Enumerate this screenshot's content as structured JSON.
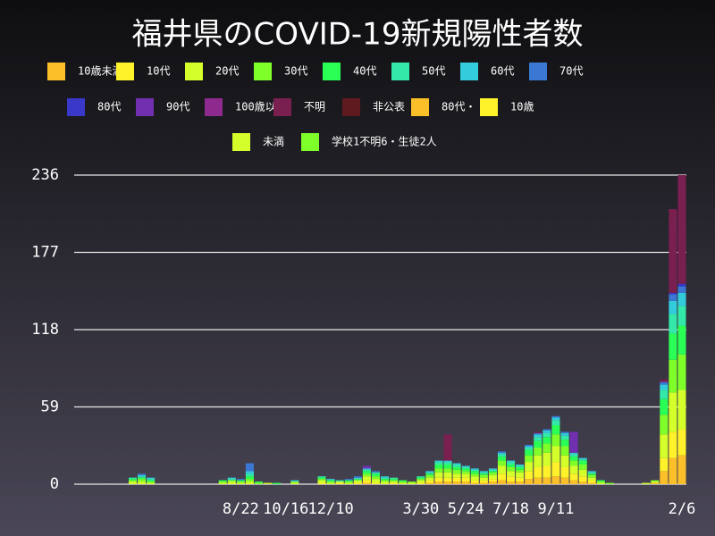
{
  "chart_data": {
    "type": "bar",
    "stacked": true,
    "title": "福井県のCOVID-19新規陽性者数",
    "categories": [
      null,
      null,
      null,
      null,
      null,
      null,
      null,
      null,
      null,
      null,
      null,
      null,
      null,
      null,
      null,
      null,
      null,
      null,
      "8/22",
      null,
      null,
      null,
      null,
      "10/16",
      null,
      null,
      null,
      null,
      "12/10",
      null,
      null,
      null,
      null,
      null,
      null,
      null,
      null,
      null,
      "3/30",
      null,
      null,
      null,
      null,
      "5/24",
      null,
      null,
      null,
      null,
      "7/18",
      null,
      null,
      null,
      null,
      "9/11",
      null,
      null,
      null,
      null,
      null,
      null,
      null,
      null,
      null,
      null,
      null,
      null,
      null,
      "2/6"
    ],
    "ylim": [
      0,
      236
    ],
    "yticks": [
      0,
      59,
      118,
      177,
      236
    ],
    "grid": true,
    "series": [
      {
        "name": "10歳未満",
        "color": "#fbbf2a",
        "values": [
          0,
          0,
          0,
          0,
          0,
          0,
          0,
          0,
          0,
          0,
          0,
          0,
          0,
          0,
          0,
          0,
          0,
          0,
          0,
          0,
          0,
          0,
          0,
          0,
          0,
          0,
          0,
          0,
          0,
          0,
          0,
          0,
          1,
          0,
          0,
          0,
          0,
          0,
          0,
          1,
          2,
          2,
          2,
          2,
          1,
          1,
          2,
          3,
          2,
          2,
          4,
          5,
          5,
          6,
          5,
          3,
          2,
          1,
          0,
          0,
          0,
          0,
          0,
          0,
          1,
          10,
          20,
          22
        ]
      },
      {
        "name": "10代",
        "color": "#fff22a",
        "values": [
          0,
          0,
          0,
          0,
          0,
          0,
          0,
          0,
          0,
          0,
          0,
          0,
          0,
          0,
          0,
          0,
          0,
          0,
          0,
          0,
          0,
          0,
          0,
          0,
          0,
          0,
          0,
          1,
          0,
          1,
          0,
          1,
          2,
          1,
          0,
          1,
          0,
          0,
          1,
          2,
          3,
          3,
          3,
          3,
          2,
          2,
          2,
          5,
          4,
          3,
          6,
          8,
          9,
          11,
          8,
          5,
          4,
          2,
          0,
          0,
          0,
          0,
          0,
          0,
          0,
          10,
          20,
          20
        ]
      },
      {
        "name": "20代",
        "color": "#d4ff2a",
        "values": [
          0,
          0,
          0,
          0,
          0,
          0,
          2,
          2,
          1,
          0,
          0,
          0,
          0,
          0,
          0,
          0,
          1,
          2,
          1,
          2,
          0,
          1,
          0,
          0,
          1,
          0,
          0,
          2,
          1,
          1,
          1,
          2,
          3,
          3,
          2,
          1,
          1,
          1,
          2,
          2,
          4,
          4,
          3,
          3,
          3,
          2,
          3,
          6,
          4,
          4,
          7,
          9,
          10,
          12,
          9,
          6,
          5,
          2,
          1,
          0,
          0,
          0,
          0,
          1,
          1,
          18,
          30,
          30
        ]
      },
      {
        "name": "30代",
        "color": "#7fff2a",
        "values": [
          0,
          0,
          0,
          0,
          0,
          0,
          1,
          2,
          1,
          0,
          0,
          0,
          0,
          0,
          0,
          0,
          1,
          1,
          1,
          2,
          1,
          0,
          0,
          0,
          1,
          0,
          0,
          1,
          1,
          0,
          1,
          0,
          2,
          2,
          1,
          1,
          1,
          1,
          1,
          2,
          3,
          3,
          3,
          2,
          2,
          2,
          2,
          4,
          3,
          2,
          5,
          6,
          7,
          9,
          7,
          4,
          4,
          2,
          1,
          1,
          0,
          0,
          0,
          0,
          1,
          15,
          25,
          27
        ]
      },
      {
        "name": "40代",
        "color": "#2aff55",
        "values": [
          0,
          0,
          0,
          0,
          0,
          0,
          1,
          1,
          1,
          0,
          0,
          0,
          0,
          0,
          0,
          0,
          1,
          0,
          1,
          2,
          1,
          0,
          1,
          0,
          0,
          0,
          0,
          1,
          1,
          0,
          1,
          1,
          2,
          2,
          1,
          1,
          1,
          0,
          1,
          1,
          3,
          3,
          2,
          2,
          2,
          1,
          1,
          3,
          2,
          2,
          4,
          5,
          5,
          7,
          5,
          3,
          3,
          1,
          1,
          0,
          0,
          0,
          0,
          0,
          0,
          12,
          20,
          22
        ]
      },
      {
        "name": "50代",
        "color": "#33e8a8",
        "values": [
          0,
          0,
          0,
          0,
          0,
          0,
          1,
          1,
          1,
          0,
          0,
          0,
          0,
          0,
          0,
          0,
          0,
          1,
          0,
          2,
          0,
          0,
          0,
          0,
          0,
          0,
          0,
          1,
          0,
          1,
          0,
          0,
          1,
          1,
          1,
          1,
          0,
          0,
          1,
          1,
          2,
          2,
          2,
          1,
          1,
          1,
          1,
          2,
          2,
          1,
          2,
          3,
          3,
          4,
          3,
          2,
          1,
          1,
          0,
          0,
          0,
          0,
          0,
          0,
          0,
          7,
          15,
          15
        ]
      },
      {
        "name": "60代",
        "color": "#33ccdd",
        "values": [
          0,
          0,
          0,
          0,
          0,
          0,
          0,
          1,
          1,
          0,
          0,
          0,
          0,
          0,
          0,
          0,
          0,
          1,
          0,
          2,
          0,
          0,
          0,
          0,
          1,
          0,
          0,
          0,
          1,
          0,
          0,
          1,
          1,
          0,
          1,
          0,
          0,
          0,
          0,
          1,
          1,
          1,
          1,
          1,
          1,
          1,
          1,
          1,
          1,
          1,
          1,
          2,
          2,
          2,
          2,
          1,
          1,
          1,
          0,
          0,
          0,
          0,
          0,
          0,
          0,
          4,
          10,
          10
        ]
      },
      {
        "name": "70代",
        "color": "#3a78d4",
        "values": [
          0,
          0,
          0,
          0,
          0,
          0,
          0,
          1,
          0,
          0,
          0,
          0,
          0,
          0,
          0,
          0,
          0,
          0,
          1,
          6,
          0,
          0,
          0,
          0,
          0,
          0,
          0,
          0,
          0,
          0,
          1,
          1,
          0,
          1,
          0,
          0,
          0,
          0,
          0,
          0,
          0,
          0,
          0,
          0,
          0,
          0,
          0,
          1,
          0,
          0,
          1,
          1,
          1,
          1,
          1,
          0,
          0,
          0,
          0,
          0,
          0,
          0,
          0,
          0,
          0,
          2,
          5,
          5
        ]
      },
      {
        "name": "80代",
        "color": "#3a38c8",
        "values": [
          0,
          0,
          0,
          0,
          0,
          0,
          0,
          0,
          0,
          0,
          0,
          0,
          0,
          0,
          0,
          0,
          0,
          0,
          0,
          0,
          0,
          0,
          0,
          0,
          0,
          0,
          0,
          0,
          0,
          0,
          0,
          0,
          0,
          0,
          0,
          0,
          0,
          0,
          0,
          0,
          0,
          0,
          0,
          0,
          0,
          0,
          0,
          0,
          0,
          0,
          0,
          0,
          0,
          0,
          0,
          0,
          0,
          0,
          0,
          0,
          0,
          0,
          0,
          0,
          0,
          0,
          1,
          2
        ]
      },
      {
        "name": "90代",
        "color": "#7030b0",
        "values": [
          0,
          0,
          0,
          0,
          0,
          0,
          0,
          0,
          0,
          0,
          0,
          0,
          0,
          0,
          0,
          0,
          0,
          0,
          0,
          0,
          0,
          0,
          0,
          0,
          0,
          0,
          0,
          0,
          0,
          0,
          0,
          0,
          2,
          0,
          0,
          0,
          0,
          0,
          0,
          0,
          0,
          0,
          0,
          0,
          0,
          0,
          0,
          0,
          0,
          0,
          0,
          0,
          0,
          0,
          0,
          16,
          0,
          0,
          0,
          0,
          0,
          0,
          0,
          0,
          0,
          0,
          0,
          0
        ]
      },
      {
        "name": "100歳以上",
        "color": "#8e2a8e",
        "values": [
          0,
          0,
          0,
          0,
          0,
          0,
          0,
          0,
          0,
          0,
          0,
          0,
          0,
          0,
          0,
          0,
          0,
          0,
          0,
          0,
          0,
          0,
          0,
          0,
          0,
          0,
          0,
          0,
          0,
          0,
          0,
          0,
          0,
          0,
          0,
          0,
          0,
          0,
          0,
          0,
          0,
          0,
          0,
          0,
          0,
          0,
          0,
          0,
          0,
          0,
          0,
          0,
          0,
          0,
          0,
          0,
          0,
          0,
          0,
          0,
          0,
          0,
          0,
          0,
          0,
          0,
          0,
          0
        ]
      },
      {
        "name": "不明",
        "color": "#7a2050",
        "values": [
          0,
          0,
          0,
          0,
          0,
          0,
          0,
          0,
          0,
          0,
          0,
          0,
          0,
          0,
          0,
          0,
          0,
          0,
          0,
          0,
          0,
          0,
          0,
          0,
          0,
          0,
          0,
          0,
          0,
          0,
          0,
          0,
          0,
          0,
          0,
          0,
          0,
          0,
          0,
          0,
          0,
          20,
          0,
          0,
          0,
          0,
          0,
          0,
          0,
          0,
          0,
          1,
          0,
          0,
          0,
          0,
          0,
          0,
          0,
          0,
          0,
          0,
          0,
          0,
          0,
          2,
          64,
          83
        ]
      },
      {
        "name": "非公表",
        "color": "#5e1a1e",
        "values": [
          0,
          0,
          0,
          0,
          0,
          0,
          0,
          0,
          0,
          0,
          0,
          0,
          0,
          0,
          0,
          0,
          0,
          0,
          0,
          0,
          0,
          0,
          0,
          0,
          0,
          0,
          0,
          0,
          0,
          0,
          0,
          0,
          0,
          0,
          0,
          0,
          0,
          0,
          0,
          0,
          0,
          0,
          0,
          0,
          0,
          0,
          0,
          0,
          0,
          0,
          0,
          0,
          0,
          0,
          0,
          0,
          0,
          0,
          0,
          0,
          0,
          0,
          0,
          0,
          0,
          0,
          0,
          0
        ]
      },
      {
        "name": "80代・",
        "color": "#fbbf2a",
        "values": [
          0,
          0,
          0,
          0,
          0,
          0,
          0,
          0,
          0,
          0,
          0,
          0,
          0,
          0,
          0,
          0,
          0,
          0,
          0,
          0,
          0,
          0,
          0,
          0,
          0,
          0,
          0,
          0,
          0,
          0,
          0,
          0,
          0,
          0,
          0,
          0,
          0,
          0,
          0,
          0,
          0,
          0,
          0,
          0,
          0,
          0,
          0,
          0,
          0,
          0,
          0,
          0,
          0,
          0,
          0,
          0,
          0,
          0,
          0,
          0,
          0,
          0,
          0,
          0,
          0,
          0,
          0,
          0
        ]
      },
      {
        "name": "10歳",
        "color": "#fff22a",
        "values": [
          0,
          0,
          0,
          0,
          0,
          0,
          0,
          0,
          0,
          0,
          0,
          0,
          0,
          0,
          0,
          0,
          0,
          0,
          0,
          0,
          0,
          0,
          0,
          0,
          0,
          0,
          0,
          0,
          0,
          0,
          0,
          0,
          0,
          0,
          0,
          0,
          0,
          0,
          0,
          0,
          0,
          0,
          0,
          0,
          0,
          0,
          0,
          0,
          0,
          0,
          0,
          0,
          0,
          0,
          0,
          0,
          0,
          0,
          0,
          0,
          0,
          0,
          0,
          0,
          0,
          0,
          0,
          0
        ]
      },
      {
        "name": "未満",
        "color": "#d4ff2a",
        "values": [
          0,
          0,
          0,
          0,
          0,
          0,
          0,
          0,
          0,
          0,
          0,
          0,
          0,
          0,
          0,
          0,
          0,
          0,
          0,
          0,
          0,
          0,
          0,
          0,
          0,
          0,
          0,
          0,
          0,
          0,
          0,
          0,
          0,
          0,
          0,
          0,
          0,
          0,
          0,
          0,
          0,
          0,
          0,
          0,
          0,
          0,
          0,
          0,
          0,
          0,
          0,
          0,
          0,
          0,
          0,
          0,
          0,
          0,
          0,
          0,
          0,
          0,
          0,
          0,
          0,
          0,
          0,
          0
        ]
      },
      {
        "name": "学校1不明6・生徒2人",
        "color": "#7fff2a",
        "values": [
          0,
          0,
          0,
          0,
          0,
          0,
          0,
          0,
          0,
          0,
          0,
          0,
          0,
          0,
          0,
          0,
          0,
          0,
          0,
          0,
          0,
          0,
          0,
          0,
          0,
          0,
          0,
          0,
          0,
          0,
          0,
          0,
          0,
          0,
          0,
          0,
          0,
          0,
          0,
          0,
          0,
          0,
          0,
          0,
          0,
          0,
          0,
          0,
          0,
          0,
          0,
          0,
          0,
          0,
          0,
          0,
          0,
          0,
          0,
          0,
          0,
          0,
          0,
          0,
          0,
          0,
          0,
          0
        ]
      }
    ]
  }
}
